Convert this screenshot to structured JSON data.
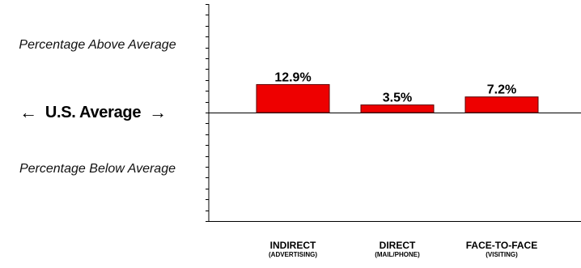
{
  "side_labels": {
    "above": "Percentage Above Average",
    "baseline": "U.S. Average",
    "below": "Percentage Below Average",
    "left_arrow": "←",
    "right_arrow": "→"
  },
  "colors": {
    "bar_fill": "#ee0000",
    "bar_stroke": "#5a0000"
  },
  "chart_data": {
    "type": "bar",
    "categories": [
      {
        "name": "INDIRECT",
        "sub": "(ADVERTISING)"
      },
      {
        "name": "DIRECT",
        "sub": "(MAIL/PHONE)"
      },
      {
        "name": "FACE-TO-FACE",
        "sub": "(VISITING)"
      }
    ],
    "values": [
      12.9,
      3.5,
      7.2
    ],
    "value_labels": [
      "12.9%",
      "3.5%",
      "7.2%"
    ],
    "ylim": [
      -50,
      50
    ],
    "baseline": 0,
    "grid": false,
    "legend": "none"
  }
}
